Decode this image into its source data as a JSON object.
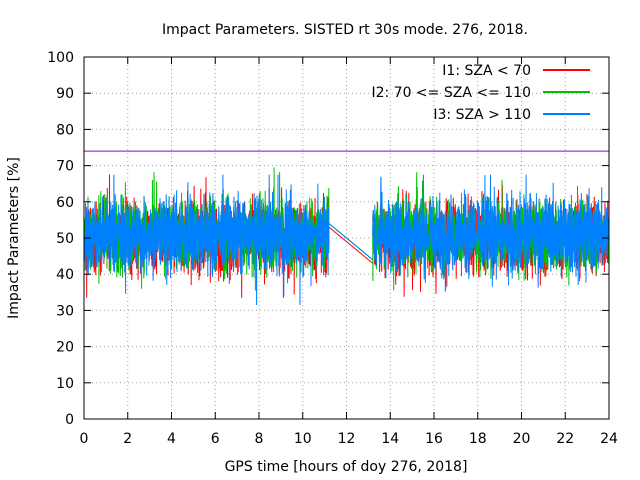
{
  "chart_data": {
    "type": "line",
    "title": "Impact Parameters. SISTED rt 30s mode. 276, 2018.",
    "xlabel": "GPS time [hours of doy 276, 2018]",
    "ylabel": "Impact Parameters [%]",
    "xlim": [
      0,
      24
    ],
    "ylim": [
      0,
      100
    ],
    "xticks": [
      0,
      2,
      4,
      6,
      8,
      10,
      12,
      14,
      16,
      18,
      20,
      22,
      24
    ],
    "yticks": [
      0,
      10,
      20,
      30,
      40,
      50,
      60,
      70,
      80,
      90,
      100
    ],
    "grid": true,
    "legend_position": "top-right",
    "reference_line": {
      "y": 74,
      "color": "#9400d3"
    },
    "data_gap": [
      11.2,
      13.2
    ],
    "series": [
      {
        "name": "I1: SZA < 70",
        "color": "#ff0000",
        "mean": 50,
        "range": [
          33.5,
          67.5
        ]
      },
      {
        "name": "I2: 70 <= SZA <= 110",
        "color": "#00c000",
        "mean": 51,
        "range": [
          35.5,
          69.5
        ]
      },
      {
        "name": "I3: SZA > 110",
        "color": "#0080ff",
        "mean": 51,
        "range": [
          31.5,
          67.5
        ]
      }
    ]
  }
}
